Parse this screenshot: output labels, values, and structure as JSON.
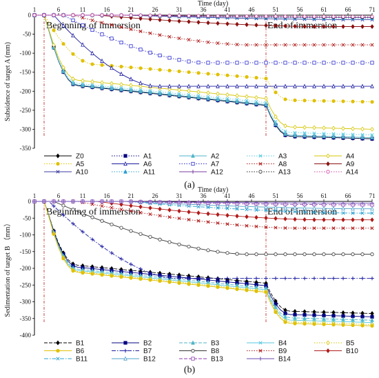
{
  "chart_data": [
    {
      "type": "line",
      "panel_label": "(a)",
      "xlabel": "Time (day)",
      "ylabel": "Subsidence of target A (mm)",
      "xlim": [
        1,
        71
      ],
      "ylim": [
        -350,
        0
      ],
      "x_ticks": [
        1,
        6,
        11,
        16,
        21,
        26,
        31,
        36,
        41,
        46,
        51,
        56,
        61,
        66,
        71
      ],
      "y_ticks": [
        0,
        -50,
        -100,
        -150,
        -200,
        -250,
        -300,
        -350
      ],
      "x_axis_position": "top",
      "grid": false,
      "annotations": [
        {
          "text": "Beginning of immersion",
          "x": 3
        },
        {
          "text": "End of immersion",
          "x": 49
        }
      ],
      "event_lines_x": [
        3,
        49
      ],
      "legend_position": "bottom",
      "series": [
        {
          "name": "Z0",
          "color": "#000000",
          "final": -325,
          "ramp": [
            3,
            10
          ],
          "style": "solid",
          "marker": "diamond"
        },
        {
          "name": "A1",
          "color": "#000080",
          "final": -325,
          "ramp": [
            3,
            10
          ],
          "style": "dot",
          "marker": "square"
        },
        {
          "name": "A2",
          "color": "#4fb3c8",
          "final": -322,
          "ramp": [
            3,
            10
          ],
          "style": "solid",
          "marker": "triangle"
        },
        {
          "name": "A3",
          "color": "#56c8e0",
          "final": -315,
          "ramp": [
            3,
            10
          ],
          "style": "dot",
          "marker": "x"
        },
        {
          "name": "A4",
          "color": "#d4c400",
          "final": -300,
          "ramp": [
            3,
            10
          ],
          "style": "solid",
          "marker": "diamond-open"
        },
        {
          "name": "A5",
          "color": "#e0c000",
          "final": -228,
          "ramp": [
            4,
            14
          ],
          "style": "dot",
          "marker": "circle"
        },
        {
          "name": "A6",
          "color": "#1a1aa0",
          "final": -187,
          "ramp": [
            5,
            26
          ],
          "style": "solid",
          "marker": "triangle-open"
        },
        {
          "name": "A7",
          "color": "#2a2ad0",
          "final": -125,
          "ramp": [
            7,
            36
          ],
          "style": "dot",
          "marker": "square-open"
        },
        {
          "name": "A8",
          "color": "#b01a1a",
          "final": -78,
          "ramp": [
            9,
            45
          ],
          "style": "dot",
          "marker": "x"
        },
        {
          "name": "A9",
          "color": "#8b1010",
          "final": -30,
          "ramp": [
            14,
            60
          ],
          "style": "solid",
          "marker": "diamond"
        },
        {
          "name": "A10",
          "color": "#3a3aa0",
          "final": -12,
          "ramp": [
            20,
            68
          ],
          "style": "solid",
          "marker": "x"
        },
        {
          "name": "A11",
          "color": "#2a9fd0",
          "final": -8,
          "ramp": [
            20,
            68
          ],
          "style": "dot",
          "marker": "triangle"
        },
        {
          "name": "A12",
          "color": "#7a3aa0",
          "final": -6,
          "ramp": [
            20,
            68
          ],
          "style": "solid",
          "marker": "plus"
        },
        {
          "name": "A13",
          "color": "#222222",
          "final": -5,
          "ramp": [
            20,
            68
          ],
          "style": "dot",
          "marker": "circle-open"
        },
        {
          "name": "A14",
          "color": "#d040a0",
          "final": -4,
          "ramp": [
            20,
            68
          ],
          "style": "dot",
          "marker": "circle-open"
        }
      ]
    },
    {
      "type": "line",
      "panel_label": "(b)",
      "xlabel": "Time (day)",
      "ylabel": "Sedimentation of target B （mm）",
      "xlim": [
        1,
        71
      ],
      "ylim": [
        -400,
        0
      ],
      "x_ticks": [
        1,
        6,
        11,
        16,
        21,
        26,
        31,
        36,
        41,
        46,
        51,
        56,
        61,
        66,
        71
      ],
      "y_ticks": [
        0,
        -50,
        -100,
        -150,
        -200,
        -250,
        -300,
        -350,
        -400
      ],
      "x_axis_position": "top",
      "grid": false,
      "annotations": [
        {
          "text": "Beginning of immersion",
          "x": 3
        },
        {
          "text": "End of immersion",
          "x": 49
        }
      ],
      "event_lines_x": [
        3,
        49
      ],
      "legend_position": "bottom",
      "series": [
        {
          "name": "B1",
          "color": "#000000",
          "final": -335,
          "ramp": [
            3,
            10
          ],
          "style": "dash",
          "marker": "diamond"
        },
        {
          "name": "B2",
          "color": "#000080",
          "final": -345,
          "ramp": [
            3,
            10
          ],
          "style": "solid",
          "marker": "square"
        },
        {
          "name": "B3",
          "color": "#4fb3c8",
          "final": -355,
          "ramp": [
            3,
            10
          ],
          "style": "dash",
          "marker": "triangle"
        },
        {
          "name": "B4",
          "color": "#56c8e0",
          "final": -362,
          "ramp": [
            3,
            10
          ],
          "style": "solid",
          "marker": "x"
        },
        {
          "name": "B5",
          "color": "#d4c400",
          "final": -368,
          "ramp": [
            3,
            10
          ],
          "style": "dot",
          "marker": "diamond-open"
        },
        {
          "name": "B6",
          "color": "#e0c000",
          "final": -372,
          "ramp": [
            3,
            10
          ],
          "style": "solid",
          "marker": "circle"
        },
        {
          "name": "B7",
          "color": "#1a1aa0",
          "final": -230,
          "ramp": [
            4,
            30
          ],
          "style": "dashdot",
          "marker": "plus"
        },
        {
          "name": "B8",
          "color": "#333333",
          "final": -158,
          "ramp": [
            5,
            45
          ],
          "style": "solid",
          "marker": "circle-open"
        },
        {
          "name": "B9",
          "color": "#b01a1a",
          "final": -80,
          "ramp": [
            10,
            55
          ],
          "style": "dot",
          "marker": "x"
        },
        {
          "name": "B10",
          "color": "#b01a1a",
          "final": -55,
          "ramp": [
            14,
            60
          ],
          "style": "solid",
          "marker": "diamond"
        },
        {
          "name": "B11",
          "color": "#2a9fd0",
          "final": -35,
          "ramp": [
            20,
            68
          ],
          "style": "dashdot",
          "marker": "x"
        },
        {
          "name": "B12",
          "color": "#4fa0c8",
          "final": -22,
          "ramp": [
            20,
            68
          ],
          "style": "solid",
          "marker": "triangle-open"
        },
        {
          "name": "B13",
          "color": "#8a3ab0",
          "final": -10,
          "ramp": [
            20,
            68
          ],
          "style": "dash",
          "marker": "square-open"
        },
        {
          "name": "B14",
          "color": "#6a4ab0",
          "final": -5,
          "ramp": [
            20,
            68
          ],
          "style": "solid",
          "marker": "plus"
        }
      ]
    }
  ]
}
